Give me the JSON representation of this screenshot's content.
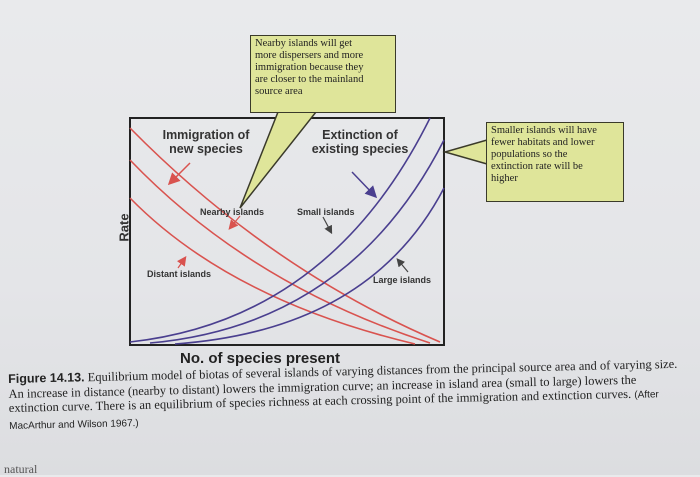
{
  "notes": {
    "nearby": "Nearby islands will get\nmore dispersers and more\nimmigration because they\nare closer to the mainland\nsource area",
    "smaller": "Smaller islands will have\nfewer habitats and lower\npopulations so the\nextinction rate will be\nhigher"
  },
  "labels": {
    "immigration": "Immigration of\nnew species",
    "extinction": "Extinction of\nexisting species",
    "nearby_islands": "Nearby islands",
    "small_islands": "Small islands",
    "distant_islands": "Distant islands",
    "large_islands": "Large islands"
  },
  "axes": {
    "y": "Rate",
    "x": "No. of species present"
  },
  "caption": {
    "figure_number": "Figure 14.13.",
    "text": "Equilibrium model of biotas of several islands of varying distances from the principal source area and of varying size. An increase in distance (nearby to distant) lowers the immigration curve; an increase in island area (small to large) lowers the extinction curve. There is an equilibrium of species richness at each crossing point of the immigration and extinction curves.",
    "credit": "(After MacArthur and Wilson 1967.)"
  },
  "next_page_text": "natural",
  "colors": {
    "immigration_curves": "#d9534f",
    "extinction_curves": "#4a3f8f",
    "note_fill": "#dfe59a",
    "arrow": "#444444"
  }
}
